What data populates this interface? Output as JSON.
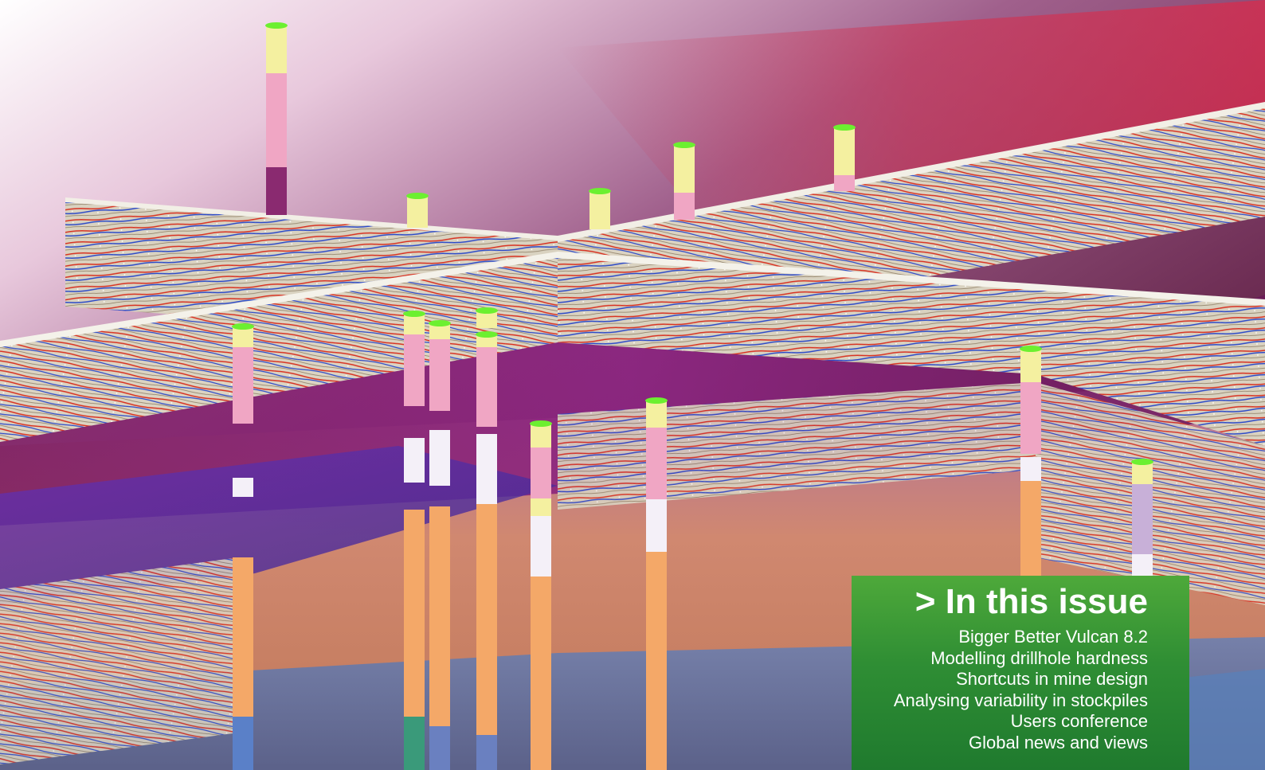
{
  "issue_box": {
    "title": "> In this issue",
    "items": [
      "Bigger Better Vulcan 8.2",
      "Modelling drillhole hardness",
      "Shortcuts in mine design",
      "Analysing variability in stockpiles",
      "Users conference",
      "Global news and views"
    ]
  },
  "colors": {
    "box_green_top": "#4ea93a",
    "box_green_bottom": "#1f7a2e",
    "sky_purple": "#5a2448",
    "sky_red": "#b0304a",
    "seismic_base": "#d8d0bc",
    "seismic_red": "#d83020",
    "seismic_blue": "#2848c8",
    "drill_pink": "#f0a0c0",
    "drill_yellow": "#f0f0a0",
    "drill_cap": "#6cf030",
    "drill_orange": "#f4a868",
    "drill_white": "#f4f0f8",
    "floor_copper": "#d08060",
    "floor_purple": "#7a2c9a",
    "floor_blue": "#4a70b8"
  },
  "scene": {
    "description_icon": "3d-seismic-drillhole-model-image"
  }
}
